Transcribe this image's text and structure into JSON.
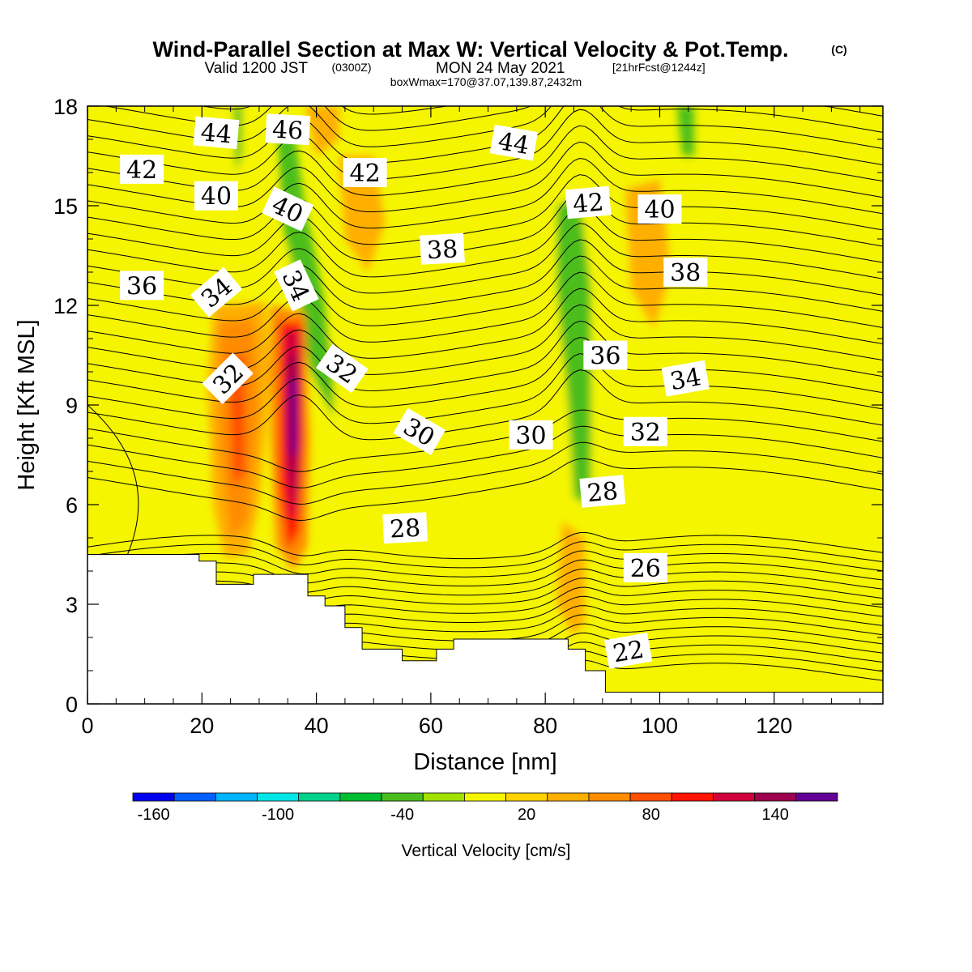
{
  "header": {
    "title": "Wind-Parallel Section at Max W: Vertical Velocity & Pot.Temp.",
    "title_mark": "(C)",
    "valid_prefix": "Valid 1200 JST",
    "valid_utc": "(0300Z)",
    "valid_date": "MON 24 May 2021",
    "forecast": "[21hrFcst@1244z]",
    "box_info": "boxWmax=170@37.07,139.87,2432m"
  },
  "chart_data": {
    "type": "heatmap",
    "xlabel": "Distance [nm]",
    "ylabel": "Height [Kft MSL]",
    "xlim": [
      0,
      139
    ],
    "ylim": [
      0,
      18
    ],
    "x_ticks": [
      0,
      20,
      40,
      60,
      80,
      100,
      120
    ],
    "y_ticks": [
      0,
      3,
      6,
      9,
      12,
      15,
      18
    ],
    "x_tick_labels": [
      "0",
      "20",
      "40",
      "60",
      "80",
      "100",
      "120"
    ],
    "y_tick_labels": [
      "0",
      "3",
      "6",
      "9",
      "12",
      "15",
      "18"
    ],
    "colorbar": {
      "title": "Vertical Velocity [cm/s]",
      "min": -170,
      "max": 170,
      "step": 20,
      "colors": [
        "#0000f0",
        "#0060ff",
        "#00b4ff",
        "#00e6e6",
        "#00d28c",
        "#00be32",
        "#4bbe1e",
        "#a0e100",
        "#f5f500",
        "#ffd200",
        "#ffaf00",
        "#ff8c00",
        "#ff5000",
        "#ff1400",
        "#d2003c",
        "#a00050",
        "#640096"
      ],
      "tick_values": [
        -160,
        -100,
        -40,
        20,
        80,
        140
      ],
      "tick_labels": [
        "-160",
        "-100",
        "-40",
        "20",
        "80",
        "140"
      ]
    },
    "theta_contours": {
      "variable": "Potential temperature",
      "interval": 1,
      "labels": [
        {
          "text": "44",
          "x": 22.5,
          "y": 17.2,
          "angle": 5
        },
        {
          "text": "46",
          "x": 35,
          "y": 17.3,
          "angle": 3
        },
        {
          "text": "42",
          "x": 9.5,
          "y": 16.1,
          "angle": 0
        },
        {
          "text": "42",
          "x": 48.5,
          "y": 16.0,
          "angle": 0
        },
        {
          "text": "44",
          "x": 74.5,
          "y": 16.9,
          "angle": 10
        },
        {
          "text": "40",
          "x": 22.5,
          "y": 15.3,
          "angle": 0
        },
        {
          "text": "40",
          "x": 35,
          "y": 14.9,
          "angle": 25
        },
        {
          "text": "42",
          "x": 87.5,
          "y": 15.1,
          "angle": -5
        },
        {
          "text": "40",
          "x": 100,
          "y": 14.9,
          "angle": 0
        },
        {
          "text": "38",
          "x": 62,
          "y": 13.7,
          "angle": -3
        },
        {
          "text": "38",
          "x": 104.5,
          "y": 13.0,
          "angle": 0
        },
        {
          "text": "36",
          "x": 9.5,
          "y": 12.6,
          "angle": 0
        },
        {
          "text": "34",
          "x": 22.5,
          "y": 12.4,
          "angle": -40
        },
        {
          "text": "34",
          "x": 36.5,
          "y": 12.6,
          "angle": 65
        },
        {
          "text": "36",
          "x": 90.5,
          "y": 10.5,
          "angle": 0
        },
        {
          "text": "34",
          "x": 104.5,
          "y": 9.8,
          "angle": -10
        },
        {
          "text": "32",
          "x": 24.5,
          "y": 9.8,
          "angle": -45
        },
        {
          "text": "32",
          "x": 44.5,
          "y": 10.1,
          "angle": 35
        },
        {
          "text": "30",
          "x": 58,
          "y": 8.2,
          "angle": 30
        },
        {
          "text": "30",
          "x": 77.5,
          "y": 8.1,
          "angle": 0
        },
        {
          "text": "32",
          "x": 97.5,
          "y": 8.2,
          "angle": 0
        },
        {
          "text": "28",
          "x": 90,
          "y": 6.4,
          "angle": -5
        },
        {
          "text": "28",
          "x": 55.5,
          "y": 5.3,
          "angle": -3
        },
        {
          "text": "26",
          "x": 97.5,
          "y": 4.1,
          "angle": 0
        },
        {
          "text": "22",
          "x": 94.5,
          "y": 1.6,
          "angle": -10
        }
      ]
    },
    "terrain_top": [
      [
        0,
        4.5
      ],
      [
        19.5,
        4.5
      ],
      [
        19.5,
        4.3
      ],
      [
        22.5,
        4.3
      ],
      [
        22.5,
        3.6
      ],
      [
        29,
        3.6
      ],
      [
        29,
        3.9
      ],
      [
        38.5,
        3.9
      ],
      [
        38.5,
        3.25
      ],
      [
        41.5,
        3.25
      ],
      [
        41.5,
        2.95
      ],
      [
        45,
        2.95
      ],
      [
        45,
        2.3
      ],
      [
        48,
        2.3
      ],
      [
        48,
        1.65
      ],
      [
        55,
        1.65
      ],
      [
        55,
        1.3
      ],
      [
        61,
        1.3
      ],
      [
        61,
        1.65
      ],
      [
        64,
        1.65
      ],
      [
        64,
        1.95
      ],
      [
        84,
        1.95
      ],
      [
        84,
        1.65
      ],
      [
        87,
        1.65
      ],
      [
        87,
        1.0
      ],
      [
        90.5,
        1.0
      ],
      [
        90.5,
        0.35
      ],
      [
        139,
        0.35
      ]
    ]
  }
}
